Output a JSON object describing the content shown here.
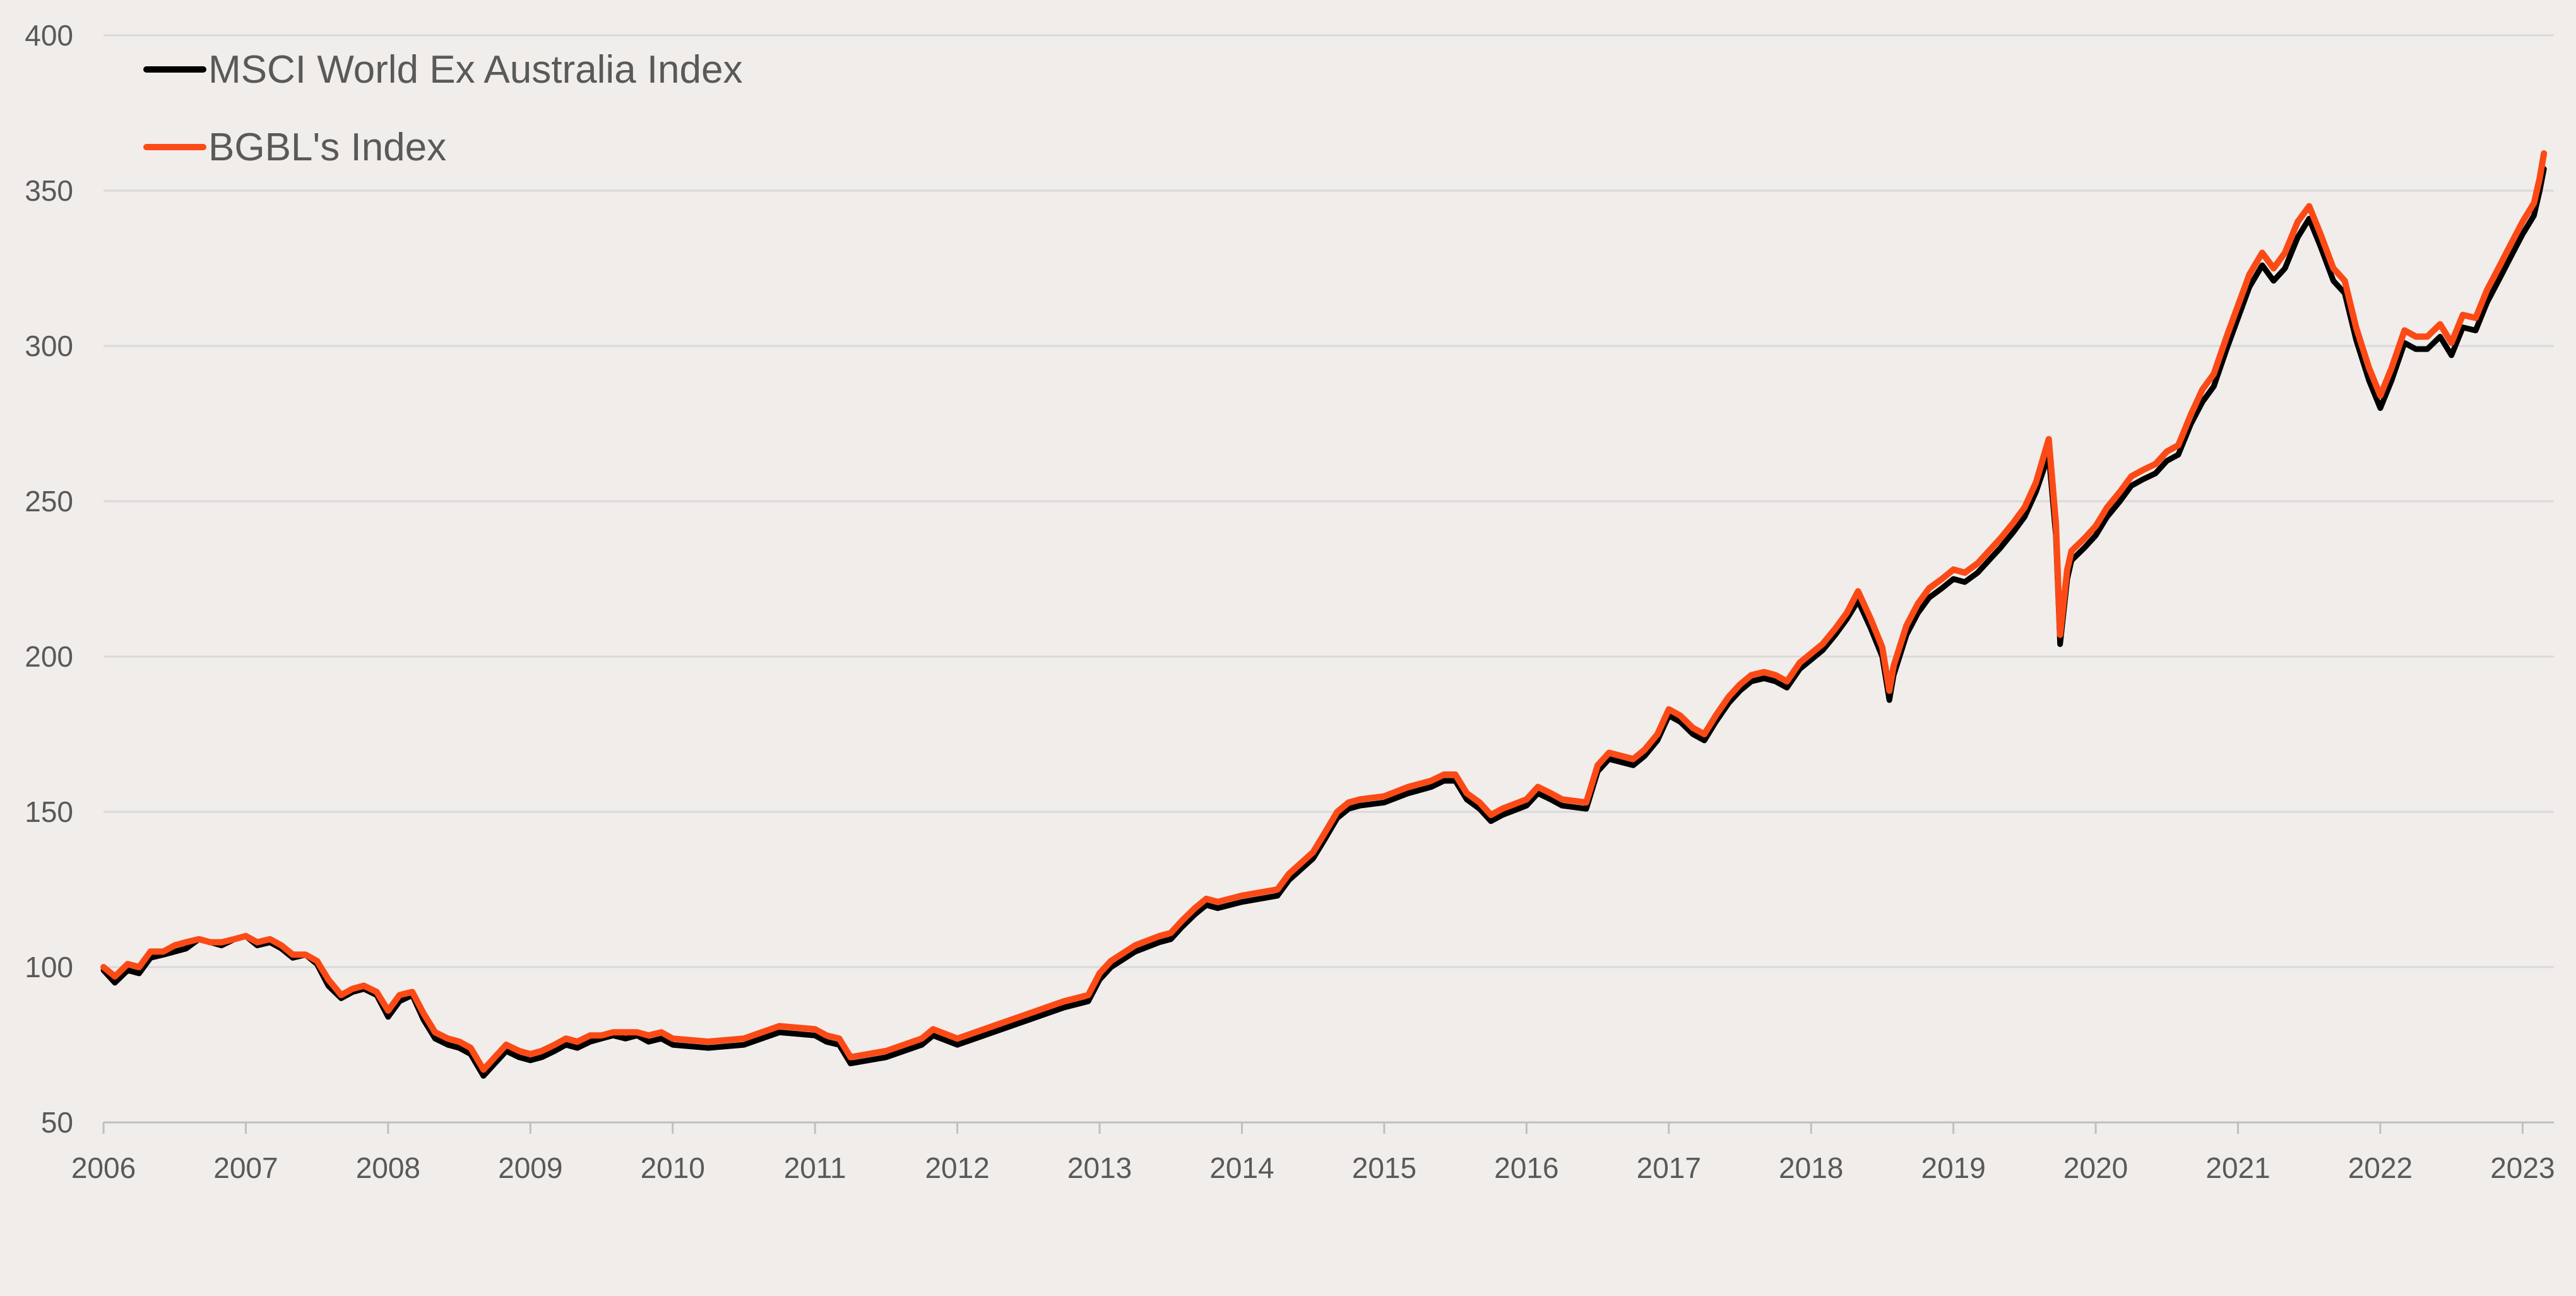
{
  "colors": {
    "background": "#f1edea",
    "grid": "#d9d9d9",
    "axis": "#bfbfbf",
    "tick_text": "#595959"
  },
  "chart_data": {
    "type": "line",
    "title": "",
    "xlabel": "",
    "ylabel": "",
    "x_tick_labels": [
      "2006",
      "2007",
      "2008",
      "2009",
      "2010",
      "2011",
      "2012",
      "2013",
      "2014",
      "2015",
      "2016",
      "2017",
      "2018",
      "2019",
      "2020",
      "2021",
      "2022",
      "2023"
    ],
    "y_tick_labels": [
      "50",
      "100",
      "150",
      "200",
      "250",
      "300",
      "350",
      "400"
    ],
    "xlim": [
      2006.0,
      2023.22
    ],
    "ylim": [
      50,
      400
    ],
    "grid": "horizontal",
    "legend_position": "top-left",
    "x": [
      2006.0,
      2006.08,
      2006.17,
      2006.25,
      2006.33,
      2006.42,
      2006.5,
      2006.58,
      2006.67,
      2006.75,
      2006.83,
      2006.92,
      2007.0,
      2007.08,
      2007.17,
      2007.25,
      2007.33,
      2007.42,
      2007.5,
      2007.58,
      2007.67,
      2007.75,
      2007.83,
      2007.92,
      2008.0,
      2008.08,
      2008.17,
      2008.25,
      2008.33,
      2008.42,
      2008.5,
      2008.58,
      2008.67,
      2008.75,
      2008.83,
      2008.92,
      2009.0,
      2009.08,
      2009.17,
      2009.25,
      2009.33,
      2009.42,
      2009.5,
      2009.58,
      2009.67,
      2009.75,
      2009.83,
      2009.92,
      2010.0,
      2010.25,
      2010.5,
      2010.75,
      2011.0,
      2011.08,
      2011.17,
      2011.25,
      2011.5,
      2011.75,
      2011.83,
      2012.0,
      2012.25,
      2012.5,
      2012.75,
      2012.92,
      2013.0,
      2013.08,
      2013.25,
      2013.42,
      2013.5,
      2013.58,
      2013.67,
      2013.75,
      2013.83,
      2014.0,
      2014.25,
      2014.33,
      2014.5,
      2014.58,
      2014.67,
      2014.75,
      2014.83,
      2015.0,
      2015.17,
      2015.25,
      2015.33,
      2015.42,
      2015.5,
      2015.58,
      2015.67,
      2015.75,
      2015.83,
      2016.0,
      2016.08,
      2016.17,
      2016.25,
      2016.42,
      2016.5,
      2016.58,
      2016.75,
      2016.83,
      2016.92,
      2017.0,
      2017.08,
      2017.17,
      2017.25,
      2017.33,
      2017.42,
      2017.5,
      2017.58,
      2017.67,
      2017.75,
      2017.83,
      2017.92,
      2018.0,
      2018.08,
      2018.17,
      2018.25,
      2018.33,
      2018.42,
      2018.5,
      2018.55,
      2018.58,
      2018.67,
      2018.75,
      2018.83,
      2018.92,
      2019.0,
      2019.08,
      2019.17,
      2019.25,
      2019.33,
      2019.42,
      2019.5,
      2019.58,
      2019.67,
      2019.72,
      2019.75,
      2019.8,
      2019.83,
      2019.92,
      2020.0,
      2020.08,
      2020.17,
      2020.25,
      2020.33,
      2020.42,
      2020.5,
      2020.58,
      2020.67,
      2020.75,
      2020.83,
      2020.92,
      2021.0,
      2021.08,
      2021.17,
      2021.25,
      2021.33,
      2021.42,
      2021.5,
      2021.58,
      2021.67,
      2021.75,
      2021.83,
      2021.92,
      2022.0,
      2022.08,
      2022.17,
      2022.25,
      2022.33,
      2022.42,
      2022.5,
      2022.58,
      2022.67,
      2022.75,
      2022.83,
      2022.92,
      2023.0,
      2023.08,
      2023.12,
      2023.15
    ],
    "series": [
      {
        "name": "MSCI World Ex Australia Index",
        "color": "#000000",
        "values": [
          100,
          96,
          100,
          99,
          104,
          105,
          106,
          107,
          110,
          109,
          108,
          110,
          111,
          108,
          109,
          107,
          104,
          105,
          102,
          95,
          91,
          93,
          94,
          92,
          85,
          90,
          92,
          84,
          78,
          76,
          75,
          73,
          66,
          70,
          74,
          72,
          71,
          72,
          74,
          76,
          75,
          77,
          78,
          79,
          78,
          79,
          77,
          78,
          76,
          75,
          76,
          80,
          79,
          77,
          76,
          70,
          72,
          76,
          79,
          76,
          80,
          84,
          88,
          90,
          97,
          101,
          106,
          109,
          110,
          114,
          118,
          121,
          120,
          122,
          124,
          129,
          136,
          142,
          149,
          152,
          153,
          154,
          157,
          158,
          159,
          161,
          161,
          155,
          152,
          148,
          150,
          153,
          157,
          155,
          153,
          152,
          164,
          168,
          166,
          169,
          174,
          182,
          180,
          176,
          174,
          180,
          186,
          190,
          193,
          194,
          193,
          191,
          197,
          200,
          203,
          208,
          213,
          219,
          210,
          201,
          187,
          195,
          208,
          215,
          220,
          223,
          226,
          225,
          228,
          232,
          236,
          241,
          246,
          254,
          266,
          240,
          205,
          226,
          232,
          236,
          240,
          246,
          251,
          256,
          258,
          260,
          264,
          266,
          276,
          283,
          288,
          300,
          310,
          320,
          327,
          322,
          326,
          336,
          342,
          333,
          322,
          318,
          303,
          290,
          281,
          290,
          302,
          300,
          300,
          304,
          298,
          307,
          306,
          315,
          322,
          330,
          337,
          343,
          351,
          358
        ]
      },
      {
        "name": "BGBL's Index",
        "color": "#fc4a16",
        "values": [
          100,
          97,
          101,
          100,
          105,
          105,
          107,
          108,
          109,
          108,
          108,
          109,
          110,
          108,
          109,
          107,
          104,
          104,
          102,
          96,
          91,
          93,
          94,
          92,
          86,
          91,
          92,
          85,
          79,
          77,
          76,
          74,
          67,
          71,
          75,
          73,
          72,
          73,
          75,
          77,
          76,
          78,
          78,
          79,
          79,
          79,
          78,
          79,
          77,
          76,
          77,
          81,
          80,
          78,
          77,
          71,
          73,
          77,
          80,
          77,
          81,
          85,
          89,
          91,
          98,
          102,
          107,
          110,
          111,
          115,
          119,
          122,
          121,
          123,
          125,
          130,
          137,
          143,
          150,
          153,
          154,
          155,
          158,
          159,
          160,
          162,
          162,
          156,
          153,
          149,
          151,
          154,
          158,
          156,
          154,
          153,
          165,
          169,
          167,
          170,
          175,
          183,
          181,
          177,
          175,
          181,
          187,
          191,
          194,
          195,
          194,
          192,
          198,
          201,
          204,
          209,
          214,
          221,
          212,
          203,
          189,
          197,
          210,
          217,
          222,
          225,
          228,
          227,
          230,
          234,
          238,
          243,
          248,
          256,
          270,
          243,
          207,
          228,
          234,
          238,
          242,
          248,
          253,
          258,
          260,
          262,
          266,
          268,
          278,
          286,
          291,
          303,
          313,
          323,
          330,
          325,
          330,
          340,
          345,
          336,
          325,
          321,
          306,
          293,
          284,
          293,
          305,
          303,
          303,
          307,
          301,
          310,
          309,
          318,
          325,
          333,
          340,
          346,
          354,
          362
        ]
      }
    ]
  }
}
